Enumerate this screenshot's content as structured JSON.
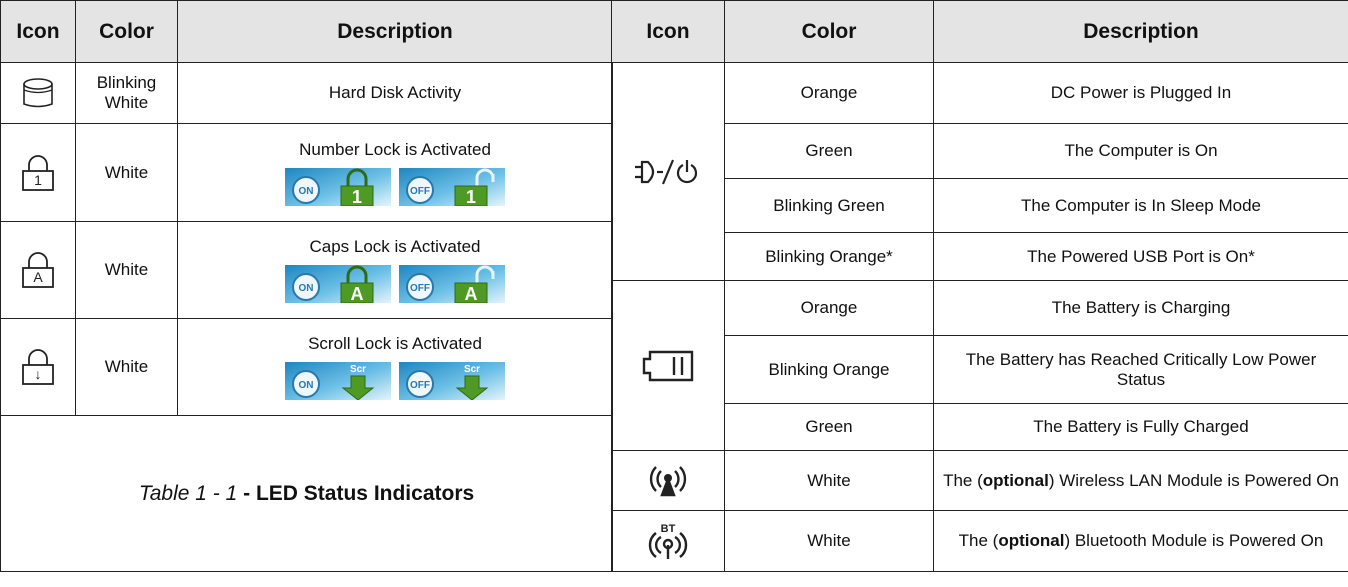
{
  "left_table": {
    "headers": [
      "Icon",
      "Color",
      "Description"
    ],
    "rows": [
      {
        "color": "Blinking White",
        "description": "Hard Disk Activity"
      },
      {
        "icon_label": "1",
        "color": "White",
        "description": "Number Lock is Activated",
        "badges": [
          {
            "state": "ON",
            "key": "1"
          },
          {
            "state": "OFF",
            "key": "1"
          }
        ]
      },
      {
        "icon_label": "A",
        "color": "White",
        "description": "Caps Lock is Activated",
        "badges": [
          {
            "state": "ON",
            "key": "A"
          },
          {
            "state": "OFF",
            "key": "A"
          }
        ]
      },
      {
        "icon_label": "↓",
        "color": "White",
        "description": "Scroll Lock is Activated",
        "badges": [
          {
            "state": "ON",
            "key": "Scr"
          },
          {
            "state": "OFF",
            "key": "Scr"
          }
        ]
      }
    ],
    "caption": {
      "label": "Table 1 - 1",
      "title": "- LED Status Indicators"
    }
  },
  "right_table": {
    "headers": [
      "Icon",
      "Color",
      "Description"
    ],
    "rows": [
      {
        "color": "Orange",
        "description": "DC Power is Plugged In"
      },
      {
        "color": "Green",
        "description": "The Computer is On"
      },
      {
        "color": "Blinking Green",
        "description": "The Computer is In Sleep Mode"
      },
      {
        "color": "Blinking Orange*",
        "description": "The Powered USB Port is On*"
      },
      {
        "color": "Orange",
        "description": "The Battery is Charging"
      },
      {
        "color": "Blinking Orange",
        "description": "The Battery has Reached Critically Low Power Status"
      },
      {
        "color": "Green",
        "description": "The Battery is Fully Charged"
      },
      {
        "color": "White",
        "description": {
          "before": "The (",
          "bold": "optional",
          "after": ") Wireless LAN Module is Powered On"
        }
      },
      {
        "icon_label": "BT",
        "color": "White",
        "description": {
          "before": "The (",
          "bold": "optional",
          "after": ") Bluetooth Module is Powered On"
        }
      }
    ]
  }
}
